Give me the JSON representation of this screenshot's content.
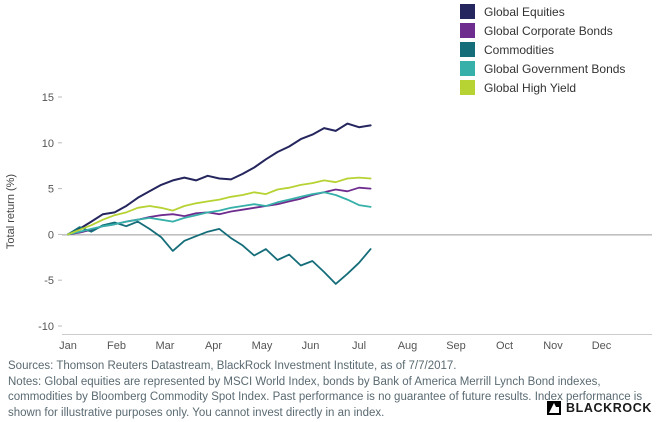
{
  "chart_data": {
    "type": "line",
    "title": "",
    "xlabel": "",
    "ylabel": "Total return (%)",
    "ylim": [
      -10,
      15
    ],
    "yticks": [
      15,
      10,
      5,
      0,
      -5,
      -10
    ],
    "xticklabels": [
      "Jan",
      "Feb",
      "Mar",
      "Apr",
      "May",
      "Jun",
      "Jul",
      "Aug",
      "Sep",
      "Oct",
      "Nov",
      "Dec"
    ],
    "x_unit": "months since Jan 1, 2017",
    "grid": false,
    "legend_position": "top-right",
    "zero_line": true,
    "x": [
      0,
      0.24,
      0.48,
      0.72,
      0.96,
      1.2,
      1.44,
      1.68,
      1.92,
      2.16,
      2.4,
      2.64,
      2.88,
      3.12,
      3.36,
      3.6,
      3.84,
      4.08,
      4.32,
      4.56,
      4.8,
      5.04,
      5.28,
      5.52,
      5.76,
      6.0,
      6.24
    ],
    "series": [
      {
        "name": "Global Equities",
        "color": "#25265e",
        "values": [
          0,
          0.6,
          1.4,
          2.2,
          2.4,
          3.1,
          4.0,
          4.7,
          5.4,
          5.9,
          6.2,
          5.9,
          6.4,
          6.1,
          6.0,
          6.6,
          7.3,
          8.2,
          9.0,
          9.6,
          10.4,
          10.9,
          11.6,
          11.3,
          12.1,
          11.7,
          11.9
        ]
      },
      {
        "name": "Global Corporate Bonds",
        "color": "#6f2c8f",
        "values": [
          0,
          0.2,
          0.5,
          0.9,
          1.1,
          1.4,
          1.6,
          1.9,
          2.1,
          2.2,
          2.0,
          2.3,
          2.4,
          2.2,
          2.5,
          2.7,
          2.9,
          3.1,
          3.3,
          3.6,
          3.9,
          4.3,
          4.6,
          4.9,
          4.7,
          5.1,
          5.0
        ]
      },
      {
        "name": "Commodities",
        "color": "#156d79",
        "values": [
          0,
          0.8,
          0.3,
          1.0,
          1.3,
          0.9,
          1.4,
          0.6,
          -0.3,
          -1.8,
          -0.7,
          -0.2,
          0.3,
          0.6,
          -0.4,
          -1.2,
          -2.3,
          -1.6,
          -2.8,
          -2.2,
          -3.4,
          -2.9,
          -4.1,
          -5.4,
          -4.3,
          -3.1,
          -1.6
        ]
      },
      {
        "name": "Global Government Bonds",
        "color": "#36b0a9",
        "values": [
          0,
          0.3,
          0.6,
          0.9,
          1.1,
          1.4,
          1.6,
          1.8,
          1.6,
          1.4,
          1.8,
          2.1,
          2.4,
          2.6,
          2.9,
          3.1,
          3.3,
          3.1,
          3.5,
          3.8,
          4.1,
          4.4,
          4.6,
          4.3,
          3.8,
          3.2,
          3.0
        ]
      },
      {
        "name": "Global High Yield",
        "color": "#b6d333",
        "values": [
          0,
          0.5,
          1.0,
          1.6,
          2.1,
          2.4,
          2.9,
          3.1,
          2.9,
          2.6,
          3.1,
          3.4,
          3.6,
          3.8,
          4.1,
          4.3,
          4.6,
          4.4,
          4.9,
          5.1,
          5.4,
          5.6,
          5.9,
          5.7,
          6.1,
          6.2,
          6.1
        ]
      }
    ]
  },
  "footer": {
    "sources": "Sources: Thomson Reuters Datastream, BlackRock Investment Institute, as of 7/7/2017.",
    "notes": "Notes: Global equities are represented by MSCI World Index, bonds by Bank of America Merrill Lynch Bond indexes, commodities by Bloomberg Commodity Spot Index. Past performance is no guarantee of future results. Index performance is shown for illustrative purposes only. You cannot invest directly in an index."
  },
  "logo": {
    "text": "BlackRock"
  }
}
